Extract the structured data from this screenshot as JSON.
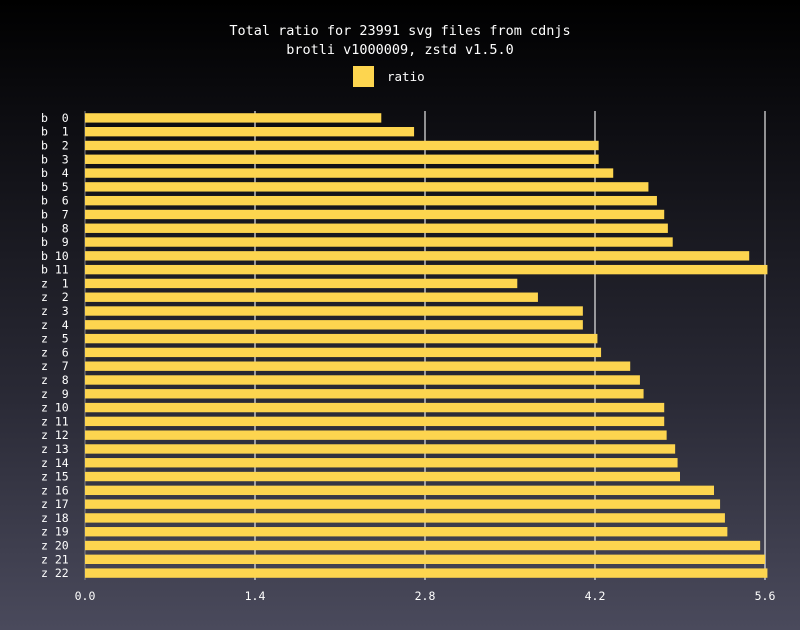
{
  "chart_data": {
    "type": "bar",
    "orientation": "horizontal",
    "title": "Total ratio for 23991 svg files from cdnjs",
    "subtitle": "brotli v1000009, zstd v1.5.0",
    "xlim": [
      0,
      5.6
    ],
    "xticks": [
      "0.0",
      "1.4",
      "2.8",
      "4.2",
      "5.6"
    ],
    "grid": true,
    "legend_position": "top-center",
    "bar_color": "#fdd54f",
    "categories": [
      "b  0",
      "b  1",
      "b  2",
      "b  3",
      "b  4",
      "b  5",
      "b  6",
      "b  7",
      "b  8",
      "b  9",
      "b 10",
      "b 11",
      "z  1",
      "z  2",
      "z  3",
      "z  4",
      "z  5",
      "z  6",
      "z  7",
      "z  8",
      "z  9",
      "z 10",
      "z 11",
      "z 12",
      "z 13",
      "z 14",
      "z 15",
      "z 16",
      "z 17",
      "z 18",
      "z 19",
      "z 20",
      "z 21",
      "z 22"
    ],
    "series": [
      {
        "name": "ratio",
        "values": [
          2.44,
          2.71,
          4.23,
          4.23,
          4.35,
          4.64,
          4.71,
          4.77,
          4.8,
          4.84,
          5.47,
          5.62,
          3.56,
          3.73,
          4.1,
          4.1,
          4.22,
          4.25,
          4.49,
          4.57,
          4.6,
          4.77,
          4.77,
          4.79,
          4.86,
          4.88,
          4.9,
          5.18,
          5.23,
          5.27,
          5.29,
          5.56,
          5.6,
          5.62
        ]
      }
    ]
  }
}
